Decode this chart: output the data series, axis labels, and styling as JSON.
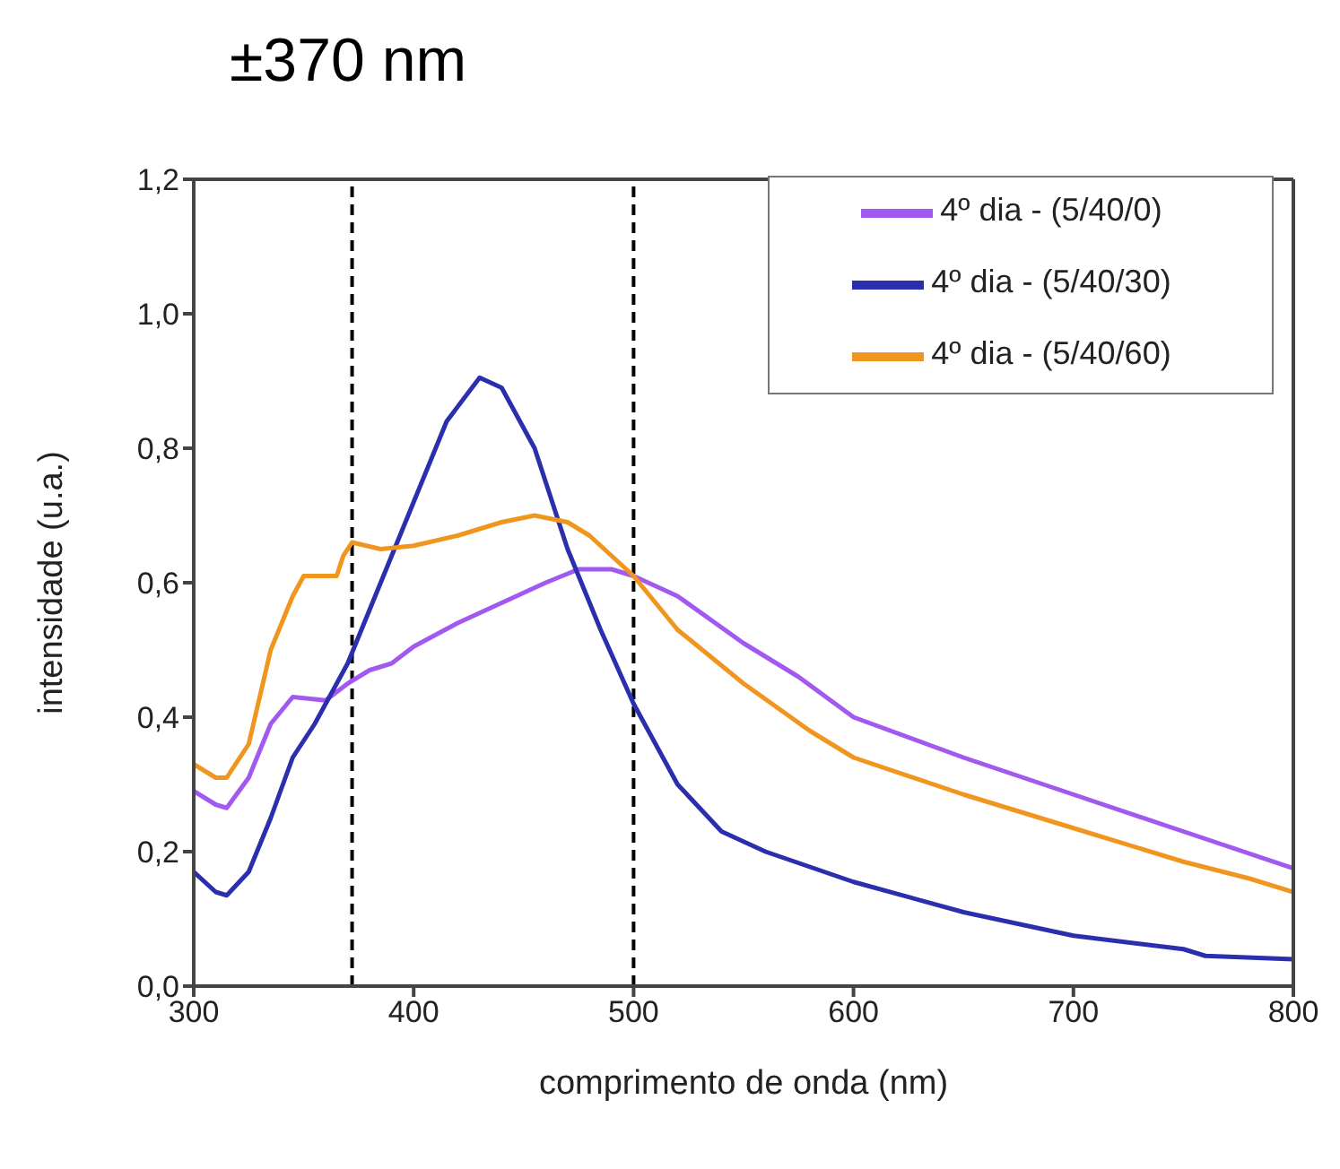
{
  "chart_data": {
    "type": "line",
    "title": "±370 nm",
    "xlabel": "comprimento de onda (nm)",
    "ylabel": "intensidade (u.a.)",
    "xlim": [
      300,
      800
    ],
    "xticks": [
      300,
      400,
      500,
      600,
      700,
      800
    ],
    "ylim": [
      0,
      1.2
    ],
    "yticks": [
      {
        "value": 0,
        "label": "0,0"
      },
      {
        "value": 0.2,
        "label": "0,2"
      },
      {
        "value": 0.4,
        "label": "0,4"
      },
      {
        "value": 0.6,
        "label": "0,6"
      },
      {
        "value": 0.8,
        "label": "0,8"
      },
      {
        "value": 1.0,
        "label": "1,0"
      },
      {
        "value": 1.2,
        "label": "1,2"
      }
    ],
    "grid": false,
    "legend": "top right",
    "marker": "none",
    "line_style": "solid",
    "ref_lines": [
      {
        "axis": "x",
        "value": 372,
        "line_style": "dashed",
        "color": "#000000"
      },
      {
        "axis": "x",
        "value": 500,
        "line_style": "dashed",
        "color": "#000000"
      }
    ],
    "series": [
      {
        "name": "4º dia - (5/40/0)",
        "color": "#a259f0",
        "x": [
          300,
          310,
          315,
          325,
          335,
          345,
          360,
          370,
          380,
          390,
          400,
          420,
          440,
          460,
          475,
          490,
          500,
          520,
          550,
          575,
          600,
          650,
          700,
          750,
          800
        ],
        "values": [
          0.29,
          0.27,
          0.265,
          0.31,
          0.39,
          0.43,
          0.425,
          0.45,
          0.47,
          0.48,
          0.505,
          0.54,
          0.57,
          0.6,
          0.62,
          0.62,
          0.61,
          0.58,
          0.51,
          0.46,
          0.4,
          0.34,
          0.285,
          0.23,
          0.175
        ]
      },
      {
        "name": "4º dia - (5/40/30)",
        "color": "#2b2fae",
        "x": [
          300,
          310,
          315,
          325,
          335,
          345,
          355,
          370,
          380,
          400,
          415,
          430,
          440,
          455,
          470,
          485,
          500,
          520,
          540,
          560,
          600,
          650,
          700,
          750,
          760,
          800
        ],
        "values": [
          0.17,
          0.14,
          0.135,
          0.17,
          0.25,
          0.34,
          0.39,
          0.48,
          0.56,
          0.72,
          0.84,
          0.905,
          0.89,
          0.8,
          0.65,
          0.53,
          0.42,
          0.3,
          0.23,
          0.2,
          0.155,
          0.11,
          0.075,
          0.055,
          0.045,
          0.04
        ]
      },
      {
        "name": "4º dia - (5/40/60)",
        "color": "#f0961e",
        "x": [
          300,
          310,
          315,
          325,
          335,
          345,
          350,
          365,
          368,
          372,
          385,
          400,
          420,
          440,
          455,
          470,
          480,
          500,
          520,
          550,
          580,
          600,
          650,
          700,
          750,
          780,
          800
        ],
        "values": [
          0.33,
          0.31,
          0.31,
          0.36,
          0.5,
          0.58,
          0.61,
          0.61,
          0.64,
          0.66,
          0.65,
          0.655,
          0.67,
          0.69,
          0.7,
          0.69,
          0.67,
          0.61,
          0.53,
          0.45,
          0.38,
          0.34,
          0.285,
          0.235,
          0.185,
          0.16,
          0.14
        ]
      }
    ]
  }
}
